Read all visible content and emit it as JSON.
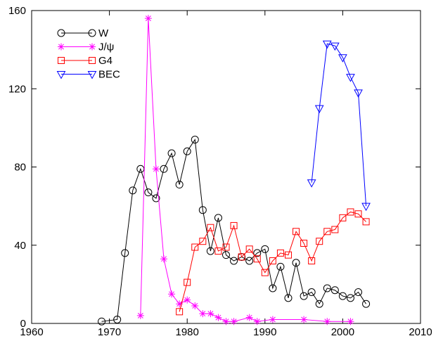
{
  "chart_data": {
    "type": "line",
    "title": "",
    "xlabel": "",
    "ylabel": "",
    "xlim": [
      1960,
      2010
    ],
    "ylim": [
      0,
      160
    ],
    "xticks": [
      1960,
      1970,
      1980,
      1990,
      2000,
      2010
    ],
    "yticks": [
      0,
      40,
      80,
      120,
      160
    ],
    "grid": false,
    "legend_position": "top-left",
    "series": [
      {
        "name": "W",
        "color": "#000000",
        "marker": "circle",
        "x": [
          1969,
          1971,
          1972,
          1973,
          1974,
          1975,
          1976,
          1977,
          1978,
          1979,
          1980,
          1981,
          1982,
          1983,
          1984,
          1985,
          1986,
          1987,
          1988,
          1989,
          1990,
          1991,
          1992,
          1993,
          1994,
          1995,
          1996,
          1997,
          1998,
          1999,
          2000,
          2001,
          2002,
          2003
        ],
        "values": [
          1,
          2,
          36,
          68,
          79,
          67,
          64,
          79,
          87,
          71,
          88,
          94,
          58,
          37,
          54,
          35,
          32,
          34,
          32,
          36,
          38,
          18,
          29,
          13,
          31,
          14,
          16,
          10,
          18,
          17,
          14,
          13,
          16,
          10
        ]
      },
      {
        "name": "J/ψ",
        "color": "#ff00ff",
        "marker": "star",
        "x": [
          1974,
          1975,
          1976,
          1977,
          1978,
          1979,
          1980,
          1981,
          1982,
          1983,
          1984,
          1985,
          1986,
          1988,
          1989,
          1991,
          1995,
          1998,
          2001
        ],
        "values": [
          4,
          156,
          79,
          33,
          15,
          10,
          12,
          9,
          5,
          5,
          3,
          1,
          1,
          3,
          1,
          2,
          2,
          1,
          1
        ]
      },
      {
        "name": "G4",
        "color": "#ff0000",
        "marker": "square",
        "x": [
          1979,
          1980,
          1981,
          1982,
          1983,
          1984,
          1985,
          1986,
          1987,
          1988,
          1989,
          1990,
          1991,
          1992,
          1993,
          1994,
          1995,
          1996,
          1997,
          1998,
          1999,
          2000,
          2001,
          2002,
          2003
        ],
        "values": [
          6,
          21,
          39,
          42,
          49,
          37,
          39,
          50,
          34,
          38,
          33,
          26,
          32,
          36,
          35,
          47,
          41,
          32,
          42,
          47,
          48,
          54,
          57,
          56,
          52
        ]
      },
      {
        "name": "BEC",
        "color": "#0000ff",
        "marker": "triangle-down",
        "x": [
          1996,
          1997,
          1998,
          1999,
          2000,
          2001,
          2002,
          2003
        ],
        "values": [
          72,
          110,
          143,
          142,
          136,
          126,
          118,
          60
        ]
      }
    ]
  }
}
